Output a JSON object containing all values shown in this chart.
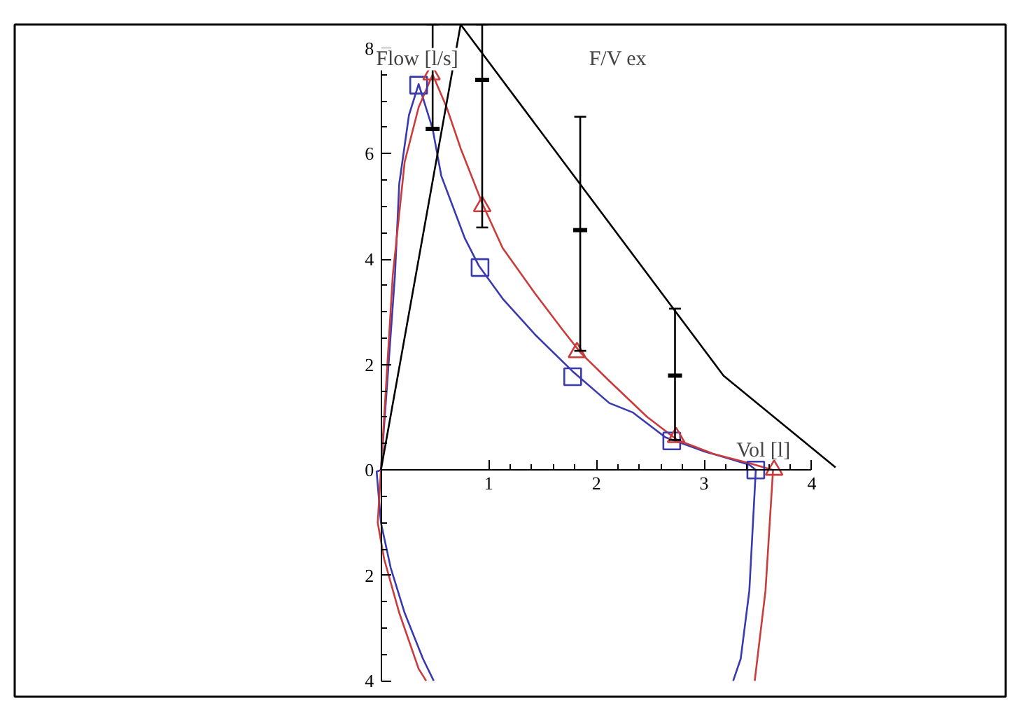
{
  "chart_data": {
    "type": "line",
    "title": "F/V ex",
    "xlabel": "Vol [l]",
    "ylabel": "Flow [l/s]",
    "xlim": [
      -3.4,
      5.8
    ],
    "ylim": [
      -4.3,
      8.45
    ],
    "xticks": [
      1,
      2,
      3,
      4
    ],
    "yticks": [
      {
        "value": -4,
        "label": "4"
      },
      {
        "value": -2,
        "label": "2"
      },
      0,
      2,
      4,
      6,
      8
    ],
    "series": [
      {
        "color": "#3a3ab0",
        "x": [
          0.49,
          0.39,
          0.22,
          0.09,
          0.0,
          -0.04,
          0.0,
          0.13,
          0.17,
          0.26,
          0.35,
          0.48,
          0.56,
          0.78,
          0.91,
          1.13,
          1.43,
          1.78,
          2.12,
          2.34,
          2.64,
          2.99,
          3.21,
          3.42,
          3.48,
          3.42,
          3.34,
          3.27
        ],
        "values": [
          -4.0,
          -3.58,
          -2.71,
          -1.85,
          -1.0,
          -0.03,
          0.0,
          3.69,
          5.43,
          6.73,
          7.32,
          6.47,
          5.58,
          4.39,
          3.87,
          3.25,
          2.57,
          1.87,
          1.27,
          1.09,
          0.62,
          0.36,
          0.23,
          0.1,
          0.0,
          -2.29,
          -3.58,
          -4.0
        ]
      },
      {
        "color": "#cc3b3b",
        "x": [
          0.42,
          0.35,
          0.17,
          0.03,
          -0.03,
          0.0,
          0.11,
          0.22,
          0.35,
          0.48,
          0.61,
          0.74,
          0.94,
          1.13,
          1.43,
          1.69,
          1.86,
          2.12,
          2.47,
          2.75,
          3.08,
          3.42,
          3.64,
          3.57,
          3.47
        ],
        "values": [
          -4.0,
          -3.77,
          -2.71,
          -1.69,
          -1.0,
          0.0,
          3.69,
          5.84,
          6.88,
          7.5,
          6.88,
          6.1,
          5.06,
          4.21,
          3.35,
          2.65,
          2.21,
          1.69,
          1.01,
          0.57,
          0.31,
          0.13,
          0.0,
          -2.29,
          -4.0
        ]
      },
      {
        "color": "#000000",
        "x": [
          0.0,
          0.74,
          3.18,
          4.22
        ],
        "values": [
          0.0,
          8.45,
          1.79,
          0.05
        ]
      },
      {
        "type": "scatter",
        "marker": "square",
        "color": "#3a3ab0",
        "x": [
          0.35,
          0.92,
          1.78,
          2.7,
          3.48
        ],
        "values": [
          7.3,
          3.84,
          1.77,
          0.55,
          0.0
        ]
      },
      {
        "type": "scatter",
        "marker": "triangle",
        "color": "#cc3b3b",
        "x": [
          0.47,
          0.94,
          1.82,
          2.74,
          3.65
        ],
        "values": [
          7.5,
          5.0,
          2.23,
          0.62,
          0.0
        ]
      },
      {
        "type": "scatter",
        "color": "#000000",
        "x": [
          0.48,
          0.94,
          1.85,
          2.73
        ],
        "values": [
          6.47,
          7.4,
          4.55,
          1.79
        ],
        "errors": [
          [
            6.47,
            8.45
          ],
          [
            4.6,
            8.45
          ],
          [
            2.26,
            6.7
          ],
          [
            0.57,
            3.06
          ]
        ]
      }
    ]
  }
}
